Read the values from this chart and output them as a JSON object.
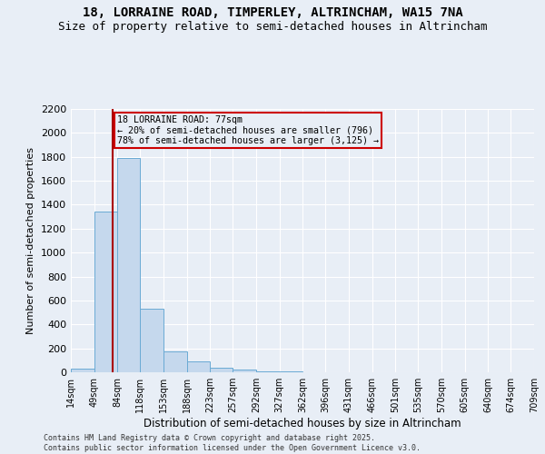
{
  "title1": "18, LORRAINE ROAD, TIMPERLEY, ALTRINCHAM, WA15 7NA",
  "title2": "Size of property relative to semi-detached houses in Altrincham",
  "xlabel": "Distribution of semi-detached houses by size in Altrincham",
  "ylabel": "Number of semi-detached properties",
  "footnote": "Contains HM Land Registry data © Crown copyright and database right 2025.\nContains public sector information licensed under the Open Government Licence v3.0.",
  "bin_labels": [
    "14sqm",
    "49sqm",
    "84sqm",
    "118sqm",
    "153sqm",
    "188sqm",
    "223sqm",
    "257sqm",
    "292sqm",
    "327sqm",
    "362sqm",
    "396sqm",
    "431sqm",
    "466sqm",
    "501sqm",
    "535sqm",
    "570sqm",
    "605sqm",
    "640sqm",
    "674sqm",
    "709sqm"
  ],
  "bin_edges": [
    14,
    49,
    84,
    118,
    153,
    188,
    223,
    257,
    292,
    327,
    362,
    396,
    431,
    466,
    501,
    535,
    570,
    605,
    640,
    674,
    709
  ],
  "bar_values": [
    30,
    1340,
    1790,
    530,
    175,
    90,
    35,
    20,
    10,
    5,
    3,
    2,
    2,
    1,
    1,
    1,
    1,
    0,
    0,
    0
  ],
  "bar_color": "#c5d8ed",
  "bar_edge_color": "#6aaad4",
  "property_size": 77,
  "property_line_color": "#aa0000",
  "annotation_line1": "18 LORRAINE ROAD: 77sqm",
  "annotation_line2": "← 20% of semi-detached houses are smaller (796)",
  "annotation_line3": "78% of semi-detached houses are larger (3,125) →",
  "annotation_box_color": "#cc0000",
  "ylim": [
    0,
    2200
  ],
  "yticks": [
    0,
    200,
    400,
    600,
    800,
    1000,
    1200,
    1400,
    1600,
    1800,
    2000,
    2200
  ],
  "background_color": "#e8eef6",
  "grid_color": "#ffffff",
  "title_fontsize": 10,
  "subtitle_fontsize": 9
}
